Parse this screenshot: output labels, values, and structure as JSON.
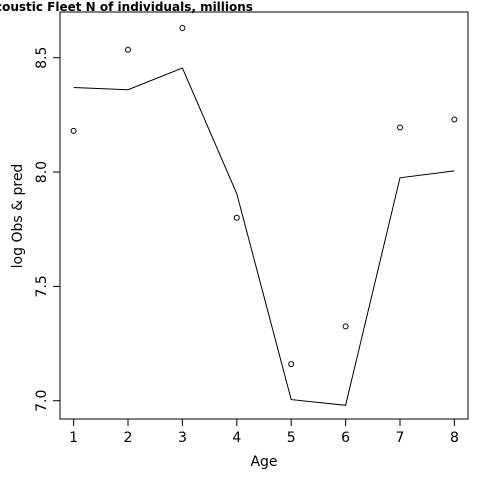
{
  "chart_data": {
    "type": "line",
    "title": "coustic Fleet   N of individuals, millions",
    "xlabel": "Age",
    "ylabel": "log Obs & pred",
    "xlim": [
      0.75,
      8.25
    ],
    "ylim": [
      6.92,
      8.7
    ],
    "x_ticks": [
      1,
      2,
      3,
      4,
      5,
      6,
      7,
      8
    ],
    "x_tick_labels": [
      "1",
      "2",
      "3",
      "4",
      "5",
      "6",
      "7",
      "8"
    ],
    "y_ticks": [
      7.0,
      7.5,
      8.0,
      8.5
    ],
    "y_tick_labels": [
      "7.0",
      "7.5",
      "8.0",
      "8.5"
    ],
    "grid": false,
    "series": [
      {
        "style": "points",
        "marker": "open-circle",
        "x": [
          1,
          2,
          3,
          4,
          5,
          6,
          7,
          8
        ],
        "y": [
          8.18,
          8.535,
          8.63,
          7.8,
          7.16,
          7.325,
          8.195,
          8.23
        ]
      },
      {
        "style": "line",
        "x": [
          1,
          2,
          3,
          4,
          5,
          6,
          7,
          8
        ],
        "y": [
          8.37,
          8.36,
          8.455,
          7.905,
          7.005,
          6.98,
          7.975,
          8.005
        ]
      }
    ]
  }
}
